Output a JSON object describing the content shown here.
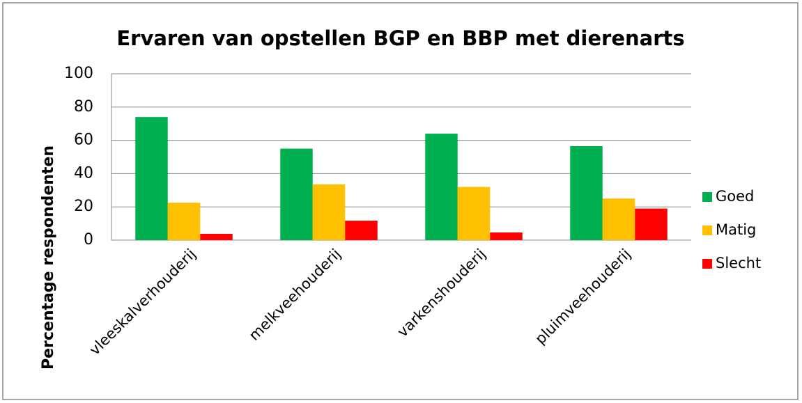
{
  "chart_data": {
    "type": "bar",
    "title": "Ervaren van opstellen BGP en BBP met dierenarts",
    "y_label": "Percentage respondenten",
    "categories": [
      "vleeskalverhouderij",
      "melkveehouderij",
      "varkenshouderij",
      "pluimveehouderij"
    ],
    "series": [
      {
        "name": "Goed",
        "color": "#00b050",
        "values": [
          74,
          55,
          64,
          56.5
        ]
      },
      {
        "name": "Matig",
        "color": "#ffc000",
        "values": [
          22.5,
          33.5,
          32,
          25
        ]
      },
      {
        "name": "Slecht",
        "color": "#ff0000",
        "values": [
          3.8,
          11.7,
          4.6,
          19
        ]
      }
    ],
    "ylim": [
      0,
      100
    ],
    "yticks": [
      0,
      20,
      40,
      60,
      80,
      100
    ],
    "grid": true,
    "legend": "right"
  }
}
